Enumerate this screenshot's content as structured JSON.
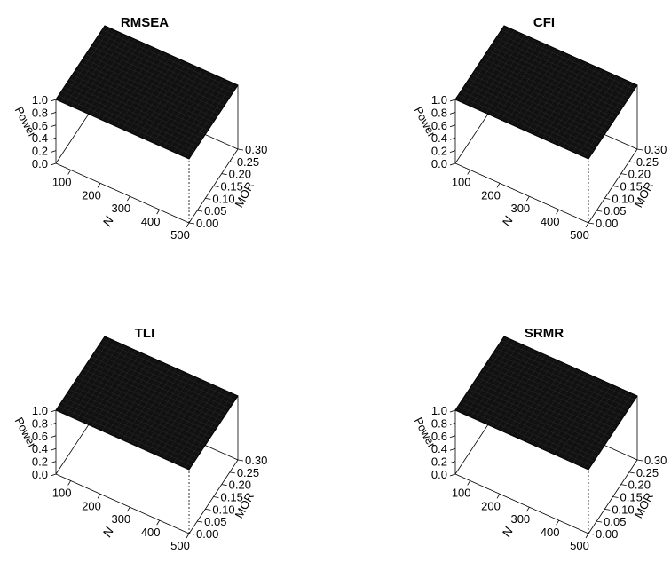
{
  "chart_data": [
    {
      "type": "surface3d",
      "title": "RMSEA",
      "x": {
        "label": "N",
        "ticks": [
          "100",
          "200",
          "300",
          "400",
          "500"
        ],
        "range": [
          50,
          500
        ]
      },
      "y": {
        "label": "MOR",
        "ticks": [
          "0.00",
          "0.05",
          "0.10",
          "0.15",
          "0.20",
          "0.25",
          "0.30"
        ],
        "range": [
          0.0,
          0.3
        ]
      },
      "z": {
        "label": "Power",
        "ticks": [
          "0.0",
          "0.2",
          "0.4",
          "0.6",
          "0.8",
          "1.0"
        ],
        "range": [
          0.0,
          1.0
        ]
      },
      "surface_value": 1.0,
      "surface_color": "#111111"
    },
    {
      "type": "surface3d",
      "title": "CFI",
      "x": {
        "label": "N",
        "ticks": [
          "100",
          "200",
          "300",
          "400",
          "500"
        ],
        "range": [
          50,
          500
        ]
      },
      "y": {
        "label": "MOR",
        "ticks": [
          "0.00",
          "0.05",
          "0.10",
          "0.15",
          "0.20",
          "0.25",
          "0.30"
        ],
        "range": [
          0.0,
          0.3
        ]
      },
      "z": {
        "label": "Power",
        "ticks": [
          "0.0",
          "0.2",
          "0.4",
          "0.6",
          "0.8",
          "1.0"
        ],
        "range": [
          0.0,
          1.0
        ]
      },
      "surface_value": 1.0,
      "surface_color": "#111111"
    },
    {
      "type": "surface3d",
      "title": "TLI",
      "x": {
        "label": "N",
        "ticks": [
          "100",
          "200",
          "300",
          "400",
          "500"
        ],
        "range": [
          50,
          500
        ]
      },
      "y": {
        "label": "MOR",
        "ticks": [
          "0.00",
          "0.05",
          "0.10",
          "0.15",
          "0.20",
          "0.25",
          "0.30"
        ],
        "range": [
          0.0,
          0.3
        ]
      },
      "z": {
        "label": "Power",
        "ticks": [
          "0.0",
          "0.2",
          "0.4",
          "0.6",
          "0.8",
          "1.0"
        ],
        "range": [
          0.0,
          1.0
        ]
      },
      "surface_value": 1.0,
      "surface_color": "#111111"
    },
    {
      "type": "surface3d",
      "title": "SRMR",
      "x": {
        "label": "N",
        "ticks": [
          "100",
          "200",
          "300",
          "400",
          "500"
        ],
        "range": [
          50,
          500
        ]
      },
      "y": {
        "label": "MOR",
        "ticks": [
          "0.00",
          "0.05",
          "0.10",
          "0.15",
          "0.20",
          "0.25",
          "0.30"
        ],
        "range": [
          0.0,
          0.3
        ]
      },
      "z": {
        "label": "Power",
        "ticks": [
          "0.0",
          "0.2",
          "0.4",
          "0.6",
          "0.8",
          "1.0"
        ],
        "range": [
          0.0,
          1.0
        ]
      },
      "surface_value": 1.0,
      "surface_color": "#111111"
    }
  ]
}
